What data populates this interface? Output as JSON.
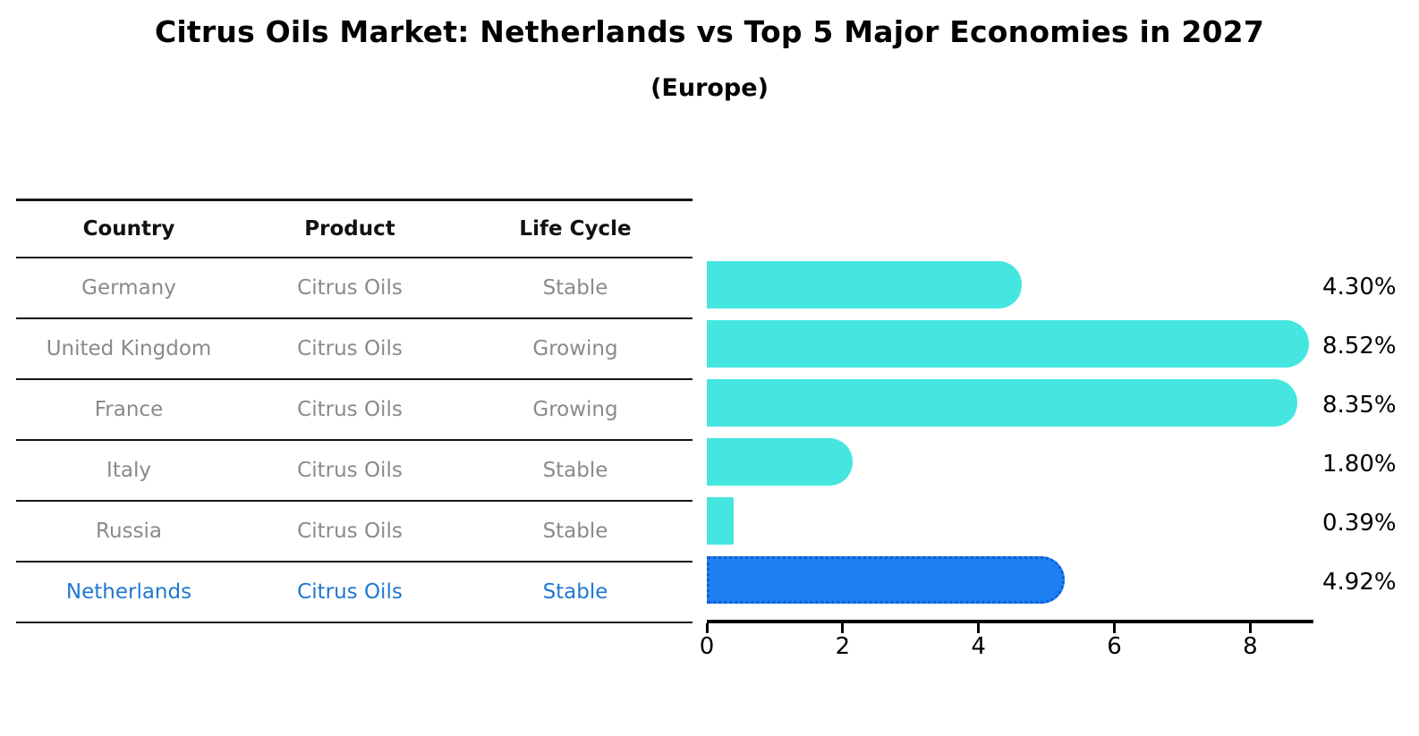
{
  "header": {
    "title": "Citrus Oils Market: Netherlands vs Top 5 Major Economies in 2027",
    "subtitle": "(Europe)"
  },
  "table": {
    "headers": [
      "Country",
      "Product",
      "Life Cycle"
    ],
    "rows": [
      {
        "country": "Germany",
        "product": "Citrus Oils",
        "life_cycle": "Stable",
        "highlight": false
      },
      {
        "country": "United Kingdom",
        "product": "Citrus Oils",
        "life_cycle": "Growing",
        "highlight": false
      },
      {
        "country": "France",
        "product": "Citrus Oils",
        "life_cycle": "Growing",
        "highlight": false
      },
      {
        "country": "Italy",
        "product": "Citrus Oils",
        "life_cycle": "Stable",
        "highlight": false
      },
      {
        "country": "Russia",
        "product": "Citrus Oils",
        "life_cycle": "Stable",
        "highlight": false
      },
      {
        "country": "Netherlands",
        "product": "Citrus Oils",
        "life_cycle": "Stable",
        "highlight": true
      }
    ]
  },
  "chart_data": {
    "type": "bar",
    "orientation": "horizontal",
    "title": "Citrus Oils Market: Netherlands vs Top 5 Major Economies in 2027",
    "subtitle": "(Europe)",
    "categories": [
      "Germany",
      "United Kingdom",
      "France",
      "Italy",
      "Russia",
      "Netherlands"
    ],
    "values": [
      4.3,
      8.52,
      8.35,
      1.8,
      0.39,
      4.92
    ],
    "value_labels": [
      "4.30%",
      "8.52%",
      "8.35%",
      "1.80%",
      "0.39%",
      "4.92%"
    ],
    "xlabel": "",
    "ylabel": "",
    "xlim": [
      0,
      8.93
    ],
    "xticks": [
      0,
      2,
      4,
      6,
      8
    ],
    "grid": false,
    "legend": null,
    "highlight_index": 5,
    "colors": {
      "bar": "#45e6e0",
      "highlight_bar": "#1e7ff2",
      "highlight_border": "#0c5fd8",
      "axis": "#000000",
      "value_label": "#000000",
      "table_text": "#8a8a8a",
      "table_header_text": "#111111",
      "highlight_text": "#1e78d2"
    }
  }
}
